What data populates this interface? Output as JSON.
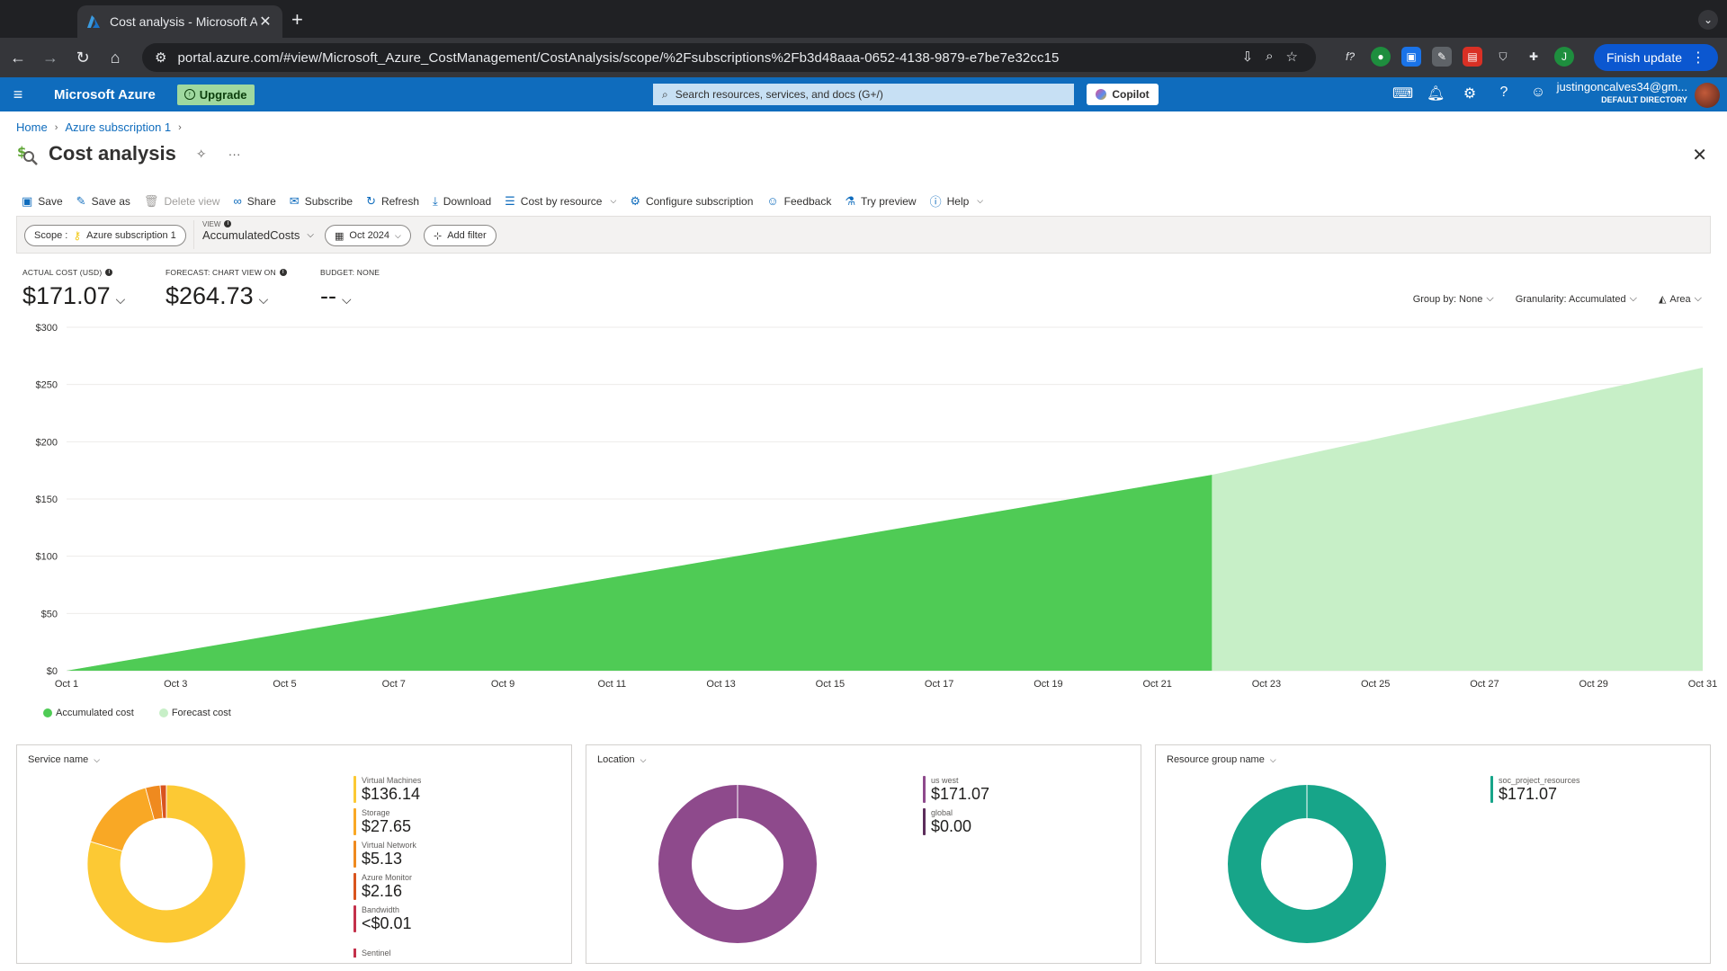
{
  "browser": {
    "tab_title": "Cost analysis - Microsoft Azure",
    "url": "portal.azure.com/#view/Microsoft_Azure_CostManagement/CostAnalysis/scope/%2Fsubscriptions%2Fb3d48aaa-0652-4138-9879-e7be7e32cc15",
    "finish_update": "Finish update",
    "profile_initial": "J"
  },
  "azure": {
    "brand": "Microsoft Azure",
    "upgrade": "Upgrade",
    "search_placeholder": "Search resources, services, and docs (G+/)",
    "copilot": "Copilot",
    "account_email": "justingoncalves34@gm...",
    "account_directory": "DEFAULT DIRECTORY"
  },
  "breadcrumb": [
    "Home",
    "Azure subscription 1"
  ],
  "page": {
    "title": "Cost analysis"
  },
  "commands": {
    "save": "Save",
    "save_as": "Save as",
    "delete_view": "Delete view",
    "share": "Share",
    "subscribe": "Subscribe",
    "refresh": "Refresh",
    "download": "Download",
    "cost_by_resource": "Cost by resource",
    "configure_subscription": "Configure subscription",
    "feedback": "Feedback",
    "try_preview": "Try preview",
    "help": "Help"
  },
  "filters": {
    "scope_label": "Scope :",
    "scope_value": "Azure subscription 1",
    "view_label": "VIEW",
    "view_value": "AccumulatedCosts",
    "date": "Oct 2024",
    "add_filter": "Add filter"
  },
  "kpis": {
    "actual_label": "ACTUAL COST (USD)",
    "actual_value": "$171.07",
    "forecast_label": "FORECAST: CHART VIEW ON",
    "forecast_value": "$264.73",
    "budget_label": "BUDGET: NONE",
    "budget_value": "--"
  },
  "chart_controls": {
    "group_by": "Group by: None",
    "granularity": "Granularity: Accumulated",
    "chart_type": "Area"
  },
  "chart_data": {
    "type": "area",
    "y_ticks": [
      "$300",
      "$250",
      "$200",
      "$150",
      "$100",
      "$50",
      "$0"
    ],
    "ylim": [
      0,
      300
    ],
    "x_ticks": [
      "Oct 1",
      "Oct 3",
      "Oct 5",
      "Oct 7",
      "Oct 9",
      "Oct 11",
      "Oct 13",
      "Oct 15",
      "Oct 17",
      "Oct 19",
      "Oct 21",
      "Oct 23",
      "Oct 25",
      "Oct 27",
      "Oct 29",
      "Oct 31"
    ],
    "xlim": [
      1,
      31
    ],
    "series": [
      {
        "name": "Accumulated cost",
        "color": "#4fcb55",
        "points": [
          [
            1,
            0
          ],
          [
            22,
            171.07
          ]
        ]
      },
      {
        "name": "Forecast cost",
        "color": "#c7efc7",
        "points": [
          [
            1,
            0
          ],
          [
            22,
            171.07
          ],
          [
            31,
            264.73
          ]
        ]
      }
    ],
    "grid": true,
    "legend": "bottom-left"
  },
  "donuts": [
    {
      "title": "Service name",
      "items": [
        {
          "name": "Virtual Machines",
          "value": "$136.14",
          "amount": 136.14,
          "color": "#fcc934"
        },
        {
          "name": "Storage",
          "value": "$27.65",
          "amount": 27.65,
          "color": "#f9a825"
        },
        {
          "name": "Virtual Network",
          "value": "$5.13",
          "amount": 5.13,
          "color": "#ef8a1f"
        },
        {
          "name": "Azure Monitor",
          "value": "$2.16",
          "amount": 2.16,
          "color": "#d9541e"
        },
        {
          "name": "Bandwidth",
          "value": "<$0.01",
          "amount": 0.01,
          "color": "#c4314b"
        }
      ],
      "truncated_item": "Sentinel"
    },
    {
      "title": "Location",
      "items": [
        {
          "name": "us west",
          "value": "$171.07",
          "amount": 171.07,
          "color": "#8e4a8c"
        },
        {
          "name": "global",
          "value": "$0.00",
          "amount": 0,
          "color": "#5c2d5b"
        }
      ]
    },
    {
      "title": "Resource group name",
      "items": [
        {
          "name": "soc_project_resources",
          "value": "$171.07",
          "amount": 171.07,
          "color": "#17a589"
        }
      ]
    }
  ]
}
